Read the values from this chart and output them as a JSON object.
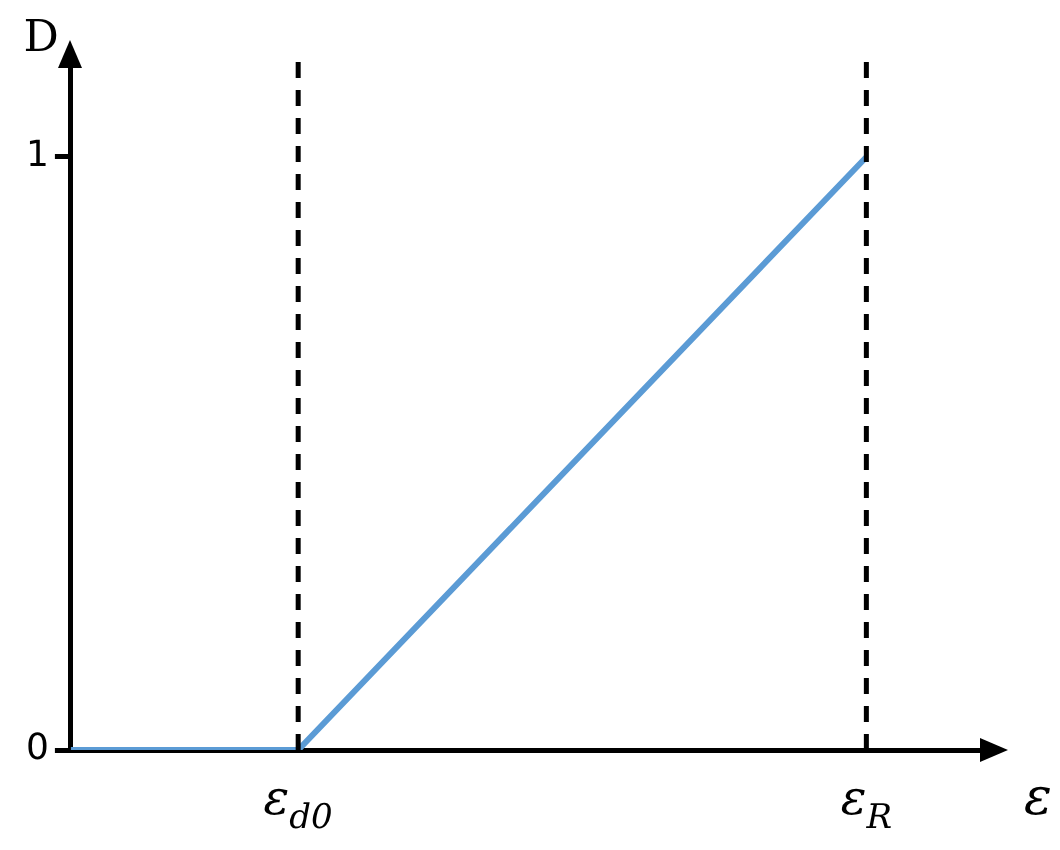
{
  "chart_data": {
    "type": "line",
    "xlabel": "ε",
    "ylabel": "D",
    "categories": [
      null,
      null,
      "ε$_{d0}$",
      null,
      null,
      null,
      null,
      "ε$_{R}$",
      null
    ],
    "series": [
      {
        "color": "#5b9bd5",
        "values": [
          0,
          null,
          0,
          null,
          null,
          null,
          null,
          1,
          null
        ]
      }
    ],
    "ylim": [
      0,
      1.15
    ],
    "yticks": [
      0,
      1
    ],
    "grid": false,
    "legend": false,
    "marker": "none",
    "line_style": "solid",
    "ref_lines": [
      {
        "axis": "x",
        "value": "ε$_{d0}$",
        "color": "#000000",
        "line_style": "dashed"
      },
      {
        "axis": "x",
        "value": "ε$_{R}$",
        "color": "#000000",
        "line_style": "dashed"
      }
    ]
  }
}
